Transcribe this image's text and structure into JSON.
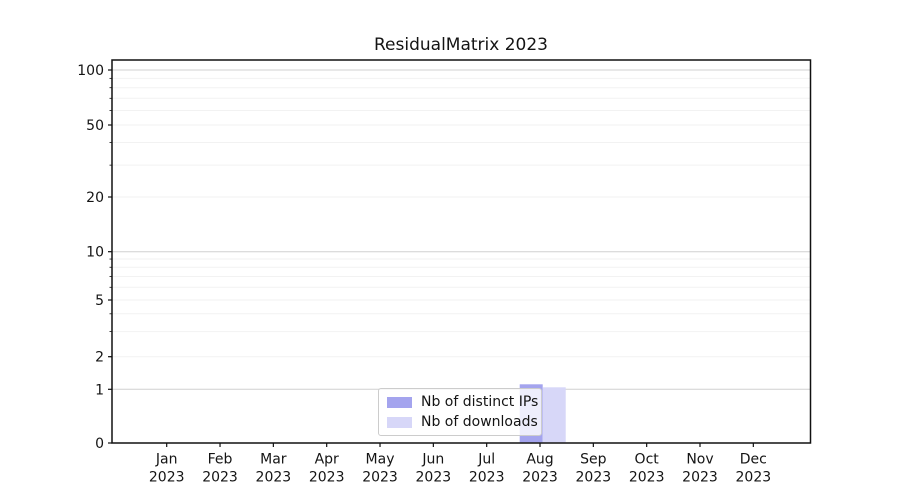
{
  "chart_data": {
    "type": "bar",
    "title": "ResidualMatrix 2023",
    "months": [
      "Jan",
      "Feb",
      "Mar",
      "Apr",
      "May",
      "Jun",
      "Jul",
      "Aug",
      "Sep",
      "Oct",
      "Nov",
      "Dec"
    ],
    "year": "2023",
    "series": [
      {
        "name": "Nb of distinct IPs",
        "color": "#a4a4ee",
        "values": [
          0,
          0,
          0,
          0,
          0,
          0,
          0,
          1,
          0,
          0,
          0,
          0
        ]
      },
      {
        "name": "Nb of downloads",
        "color": "#d7d7f8",
        "values": [
          0,
          0,
          0,
          0,
          0,
          0,
          0,
          1,
          0,
          0,
          0,
          0
        ]
      }
    ],
    "y_ticks": [
      0,
      1,
      2,
      5,
      10,
      20,
      50,
      100
    ],
    "y_scale": "symlog",
    "ylim": [
      0,
      130
    ],
    "xlabel": "",
    "ylabel": "",
    "grid": "horizontal",
    "legend_position": "lower center",
    "colors": {
      "spine": "#111111",
      "grid_major": "#d0d0d0",
      "grid_minor": "#f2f2f2",
      "text": "#141414"
    }
  }
}
